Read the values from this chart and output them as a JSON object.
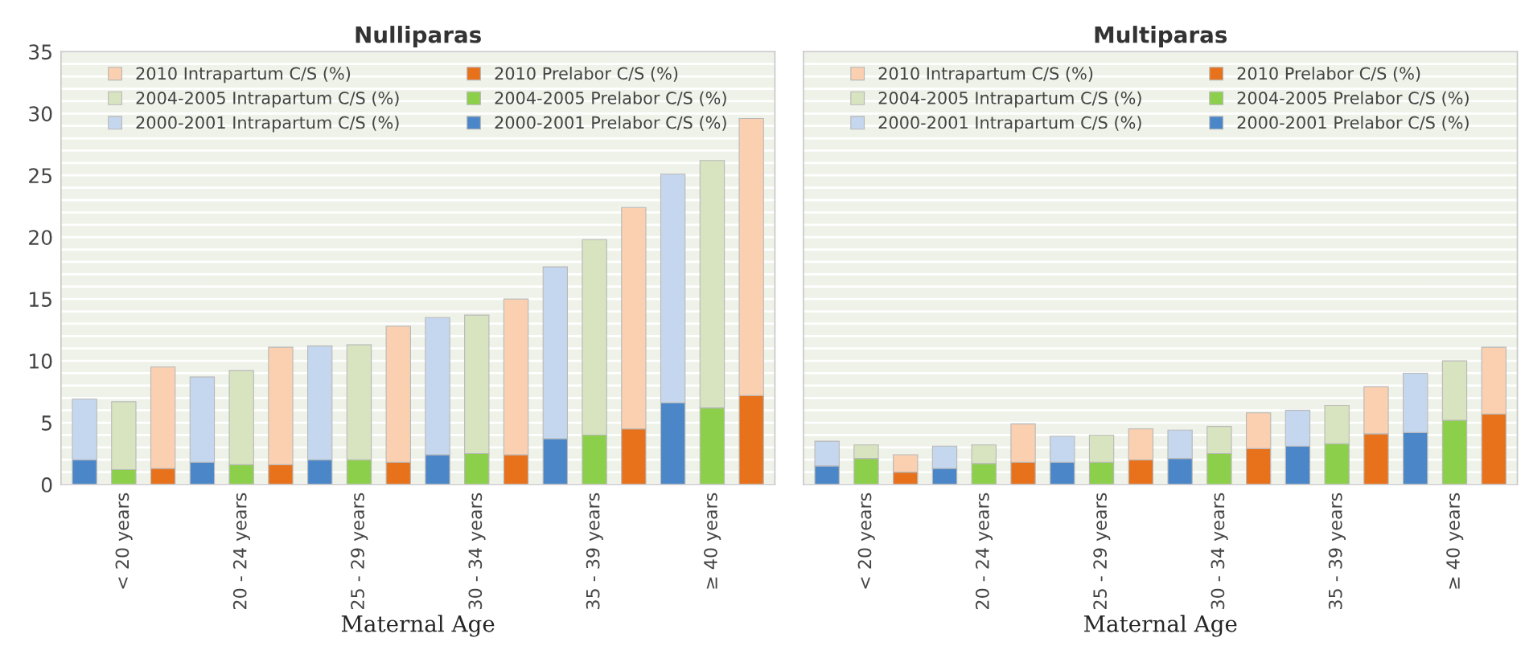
{
  "chart_data": [
    {
      "type": "bar",
      "title": "Nulliparas",
      "xlabel": "Maternal Age",
      "stacked": true,
      "grid": "y",
      "legend": "top",
      "categories": [
        null,
        "< 20 years",
        null,
        null,
        "20 - 24 years",
        null,
        null,
        "25 - 29 years",
        null,
        null,
        "30 - 34 years",
        null,
        null,
        "35 - 39 years",
        null,
        null,
        "≥ 40 years",
        null
      ],
      "ylim": [
        0,
        35
      ],
      "yticks": [
        0,
        {
          "value": 1,
          "label": null
        },
        {
          "value": 2,
          "label": null
        },
        {
          "value": 3,
          "label": null
        },
        {
          "value": 4,
          "label": null
        },
        5,
        {
          "value": 6,
          "label": null
        },
        {
          "value": 7,
          "label": null
        },
        {
          "value": 8,
          "label": null
        },
        {
          "value": 9,
          "label": null
        },
        10,
        {
          "value": 11,
          "label": null
        },
        {
          "value": 12,
          "label": null
        },
        {
          "value": 13,
          "label": null
        },
        {
          "value": 14,
          "label": null
        },
        15,
        {
          "value": 16,
          "label": null
        },
        {
          "value": 17,
          "label": null
        },
        {
          "value": 18,
          "label": null
        },
        {
          "value": 19,
          "label": null
        },
        20,
        {
          "value": 21,
          "label": null
        },
        {
          "value": 22,
          "label": null
        },
        {
          "value": 23,
          "label": null
        },
        {
          "value": 24,
          "label": null
        },
        25,
        {
          "value": 26,
          "label": null
        },
        {
          "value": 27,
          "label": null
        },
        {
          "value": 28,
          "label": null
        },
        {
          "value": 29,
          "label": null
        },
        30,
        {
          "value": 31,
          "label": null
        },
        {
          "value": 32,
          "label": null
        },
        {
          "value": 33,
          "label": null
        },
        {
          "value": 34,
          "label": null
        },
        35
      ],
      "series": [
        {
          "name": "2000-2001 Prelabor C/S (%)",
          "color": "#4a86c8",
          "values": [
            2.0,
            null,
            null,
            1.8,
            null,
            null,
            2.0,
            null,
            null,
            2.4,
            null,
            null,
            3.7,
            null,
            null,
            6.6,
            null,
            null
          ]
        },
        {
          "name": "2004-2005 Prelabor C/S (%)",
          "color": "#8ccf4a",
          "values": [
            null,
            1.2,
            null,
            null,
            1.6,
            null,
            null,
            2.0,
            null,
            null,
            2.5,
            null,
            null,
            4.0,
            null,
            null,
            6.2,
            null
          ]
        },
        {
          "name": "2010 Prelabor C/S (%)",
          "color": "#e8711c",
          "values": [
            null,
            null,
            1.3,
            null,
            null,
            1.6,
            null,
            null,
            1.8,
            null,
            null,
            2.4,
            null,
            null,
            4.5,
            null,
            null,
            7.2
          ]
        },
        {
          "name": "2000-2001 Intrapartum C/S (%)",
          "color": "#c5d7ef",
          "values": [
            4.9,
            null,
            null,
            6.9,
            null,
            null,
            9.2,
            null,
            null,
            11.1,
            null,
            null,
            13.9,
            null,
            null,
            18.5,
            null,
            null
          ]
        },
        {
          "name": "2004-2005 Intrapartum C/S (%)",
          "color": "#d8e4c0",
          "values": [
            null,
            5.5,
            null,
            null,
            7.6,
            null,
            null,
            9.3,
            null,
            null,
            11.2,
            null,
            null,
            15.8,
            null,
            null,
            20.0,
            null
          ]
        },
        {
          "name": "2010 Intrapartum C/S (%)",
          "color": "#fbd0b0",
          "values": [
            null,
            null,
            8.2,
            null,
            null,
            9.5,
            null,
            null,
            11.0,
            null,
            null,
            12.6,
            null,
            null,
            17.9,
            null,
            null,
            22.4
          ]
        }
      ]
    },
    {
      "type": "bar",
      "title": "Multiparas",
      "xlabel": "Maternal Age",
      "stacked": true,
      "grid": "y",
      "legend": "top",
      "tick_labels": "x",
      "categories": [
        null,
        "< 20 years",
        null,
        null,
        "20 - 24 years",
        null,
        null,
        "25 - 29 years",
        null,
        null,
        "30 - 34 years",
        null,
        null,
        "35 - 39 years",
        null,
        null,
        "≥ 40 years",
        null
      ],
      "ylim": [
        0,
        35
      ],
      "yticks": [
        0,
        {
          "value": 1,
          "label": null
        },
        {
          "value": 2,
          "label": null
        },
        {
          "value": 3,
          "label": null
        },
        {
          "value": 4,
          "label": null
        },
        5,
        {
          "value": 6,
          "label": null
        },
        {
          "value": 7,
          "label": null
        },
        {
          "value": 8,
          "label": null
        },
        {
          "value": 9,
          "label": null
        },
        10,
        {
          "value": 11,
          "label": null
        },
        {
          "value": 12,
          "label": null
        },
        {
          "value": 13,
          "label": null
        },
        {
          "value": 14,
          "label": null
        },
        15,
        {
          "value": 16,
          "label": null
        },
        {
          "value": 17,
          "label": null
        },
        {
          "value": 18,
          "label": null
        },
        {
          "value": 19,
          "label": null
        },
        20,
        {
          "value": 21,
          "label": null
        },
        {
          "value": 22,
          "label": null
        },
        {
          "value": 23,
          "label": null
        },
        {
          "value": 24,
          "label": null
        },
        25,
        {
          "value": 26,
          "label": null
        },
        {
          "value": 27,
          "label": null
        },
        {
          "value": 28,
          "label": null
        },
        {
          "value": 29,
          "label": null
        },
        30,
        {
          "value": 31,
          "label": null
        },
        {
          "value": 32,
          "label": null
        },
        {
          "value": 33,
          "label": null
        },
        {
          "value": 34,
          "label": null
        },
        35
      ],
      "series": [
        {
          "name": "2000-2001 Prelabor C/S (%)",
          "color": "#4a86c8",
          "values": [
            1.5,
            null,
            null,
            1.3,
            null,
            null,
            1.8,
            null,
            null,
            2.1,
            null,
            null,
            3.1,
            null,
            null,
            4.2,
            null,
            null
          ]
        },
        {
          "name": "2004-2005 Prelabor C/S (%)",
          "color": "#8ccf4a",
          "values": [
            null,
            2.1,
            null,
            null,
            1.7,
            null,
            null,
            1.8,
            null,
            null,
            2.5,
            null,
            null,
            3.3,
            null,
            null,
            5.2,
            null
          ]
        },
        {
          "name": "2010 Prelabor C/S (%)",
          "color": "#e8711c",
          "values": [
            null,
            null,
            1.0,
            null,
            null,
            1.8,
            null,
            null,
            2.0,
            null,
            null,
            2.9,
            null,
            null,
            4.1,
            null,
            null,
            5.7
          ]
        },
        {
          "name": "2000-2001 Intrapartum C/S (%)",
          "color": "#c5d7ef",
          "values": [
            2.0,
            null,
            null,
            1.8,
            null,
            null,
            2.1,
            null,
            null,
            2.3,
            null,
            null,
            2.9,
            null,
            null,
            4.8,
            null,
            null
          ]
        },
        {
          "name": "2004-2005 Intrapartum C/S (%)",
          "color": "#d8e4c0",
          "values": [
            null,
            1.1,
            null,
            null,
            1.5,
            null,
            null,
            2.2,
            null,
            null,
            2.2,
            null,
            null,
            3.1,
            null,
            null,
            4.8,
            null
          ]
        },
        {
          "name": "2010 Intrapartum C/S (%)",
          "color": "#fbd0b0",
          "values": [
            null,
            null,
            1.4,
            null,
            null,
            3.1,
            null,
            null,
            2.5,
            null,
            null,
            2.9,
            null,
            null,
            3.8,
            null,
            null,
            5.4
          ]
        }
      ]
    }
  ]
}
